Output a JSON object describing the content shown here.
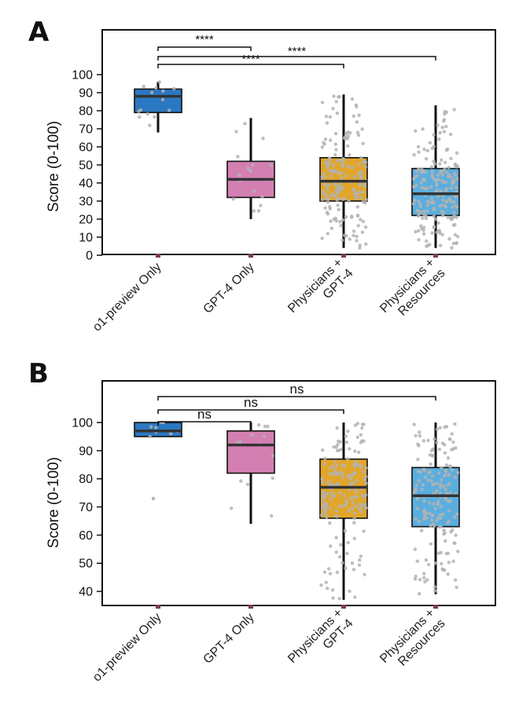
{
  "chart_data": [
    {
      "panel": "A",
      "type": "box",
      "categories": [
        "o1-preview Only",
        "GPT-4 Only",
        "Physicians + GPT-4",
        "Physicians + Resources"
      ],
      "category_lines": [
        [
          "o1-preview Only"
        ],
        [
          "GPT-4 Only"
        ],
        [
          "Physicians +",
          "GPT-4"
        ],
        [
          "Physicians +",
          "Resources"
        ]
      ],
      "colors": [
        "#2b78c2",
        "#d47fb2",
        "#e1a62a",
        "#5aaedf"
      ],
      "ylabel": "Score (0-100)",
      "ylim": [
        0,
        100
      ],
      "yticks": [
        0,
        10,
        20,
        30,
        40,
        50,
        60,
        70,
        80,
        90,
        100
      ],
      "boxes": [
        {
          "min": 68,
          "q1": 79,
          "median": 88,
          "q3": 92,
          "max": 96,
          "n_points": 14
        },
        {
          "min": 20,
          "q1": 32,
          "median": 42,
          "q3": 52,
          "max": 76,
          "n_points": 18
        },
        {
          "min": 4,
          "q1": 30,
          "median": 41,
          "q3": 54,
          "max": 89,
          "n_points": 190
        },
        {
          "min": 4,
          "q1": 22,
          "median": 34,
          "q3": 48,
          "max": 83,
          "n_points": 190
        }
      ],
      "comparisons": [
        {
          "from": 0,
          "to": 1,
          "label": "****"
        },
        {
          "from": 0,
          "to": 2,
          "label": "****"
        },
        {
          "from": 0,
          "to": 3,
          "label": "****"
        }
      ]
    },
    {
      "panel": "B",
      "type": "box",
      "categories": [
        "o1-preview Only",
        "GPT-4 Only",
        "Physicians + GPT-4",
        "Physicians + Resources"
      ],
      "category_lines": [
        [
          "o1-preview Only"
        ],
        [
          "GPT-4 Only"
        ],
        [
          "Physicians +",
          "GPT-4"
        ],
        [
          "Physicians +",
          "Resources"
        ]
      ],
      "colors": [
        "#2b78c2",
        "#d47fb2",
        "#e1a62a",
        "#5aaedf"
      ],
      "ylabel": "Score (0-100)",
      "ylim": [
        35,
        100
      ],
      "yticks": [
        40,
        50,
        60,
        70,
        80,
        90,
        100
      ],
      "boxes": [
        {
          "min": 95,
          "q1": 95,
          "median": 97,
          "q3": 100,
          "max": 100,
          "outliers": [
            73
          ],
          "n_points": 8
        },
        {
          "min": 64,
          "q1": 82,
          "median": 92,
          "q3": 97,
          "max": 100,
          "n_points": 14
        },
        {
          "min": 37,
          "q1": 66,
          "median": 77,
          "q3": 87,
          "max": 100,
          "n_points": 170
        },
        {
          "min": 39,
          "q1": 63,
          "median": 74,
          "q3": 84,
          "max": 100,
          "n_points": 170
        }
      ],
      "comparisons": [
        {
          "from": 0,
          "to": 1,
          "label": "ns"
        },
        {
          "from": 0,
          "to": 2,
          "label": "ns"
        },
        {
          "from": 0,
          "to": 3,
          "label": "ns"
        }
      ]
    }
  ]
}
